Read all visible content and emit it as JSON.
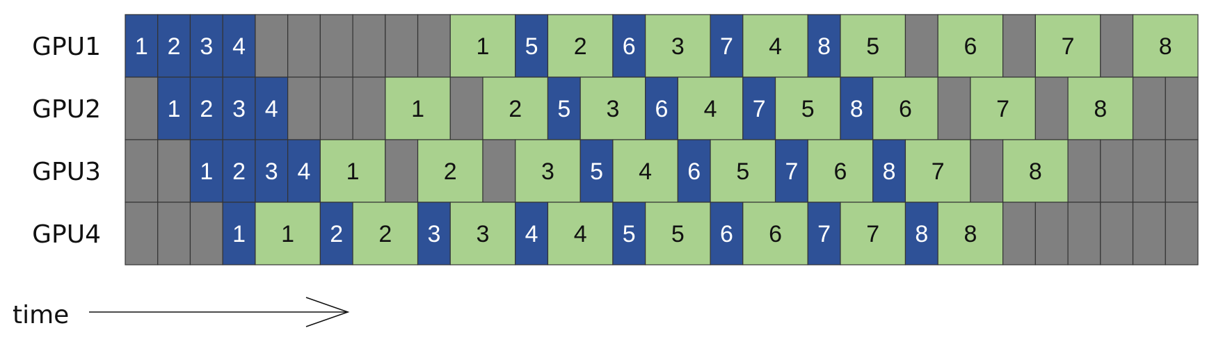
{
  "gpus": [
    {
      "label": "GPU1",
      "cells": [
        {
          "t": "fwd",
          "n": "1"
        },
        {
          "t": "fwd",
          "n": "2"
        },
        {
          "t": "fwd",
          "n": "3"
        },
        {
          "t": "fwd",
          "n": "4"
        },
        {
          "t": "idle"
        },
        {
          "t": "idle"
        },
        {
          "t": "idle"
        },
        {
          "t": "idle"
        },
        {
          "t": "idle"
        },
        {
          "t": "idle"
        },
        {
          "t": "bwd",
          "n": "1"
        },
        {
          "t": "fwd",
          "n": "5"
        },
        {
          "t": "bwd",
          "n": "2"
        },
        {
          "t": "fwd",
          "n": "6"
        },
        {
          "t": "bwd",
          "n": "3"
        },
        {
          "t": "fwd",
          "n": "7"
        },
        {
          "t": "bwd",
          "n": "4"
        },
        {
          "t": "fwd",
          "n": "8"
        },
        {
          "t": "bwd",
          "n": "5"
        },
        {
          "t": "idle"
        },
        {
          "t": "bwd",
          "n": "6"
        },
        {
          "t": "idle"
        },
        {
          "t": "bwd",
          "n": "7"
        },
        {
          "t": "idle"
        },
        {
          "t": "bwd",
          "n": "8"
        }
      ]
    },
    {
      "label": "GPU2",
      "cells": [
        {
          "t": "idle"
        },
        {
          "t": "fwd",
          "n": "1"
        },
        {
          "t": "fwd",
          "n": "2"
        },
        {
          "t": "fwd",
          "n": "3"
        },
        {
          "t": "fwd",
          "n": "4"
        },
        {
          "t": "idle"
        },
        {
          "t": "idle"
        },
        {
          "t": "idle"
        },
        {
          "t": "bwd",
          "n": "1"
        },
        {
          "t": "idle"
        },
        {
          "t": "bwd",
          "n": "2"
        },
        {
          "t": "fwd",
          "n": "5"
        },
        {
          "t": "bwd",
          "n": "3"
        },
        {
          "t": "fwd",
          "n": "6"
        },
        {
          "t": "bwd",
          "n": "4"
        },
        {
          "t": "fwd",
          "n": "7"
        },
        {
          "t": "bwd",
          "n": "5"
        },
        {
          "t": "fwd",
          "n": "8"
        },
        {
          "t": "bwd",
          "n": "6"
        },
        {
          "t": "idle"
        },
        {
          "t": "bwd",
          "n": "7"
        },
        {
          "t": "idle"
        },
        {
          "t": "bwd",
          "n": "8"
        },
        {
          "t": "idle"
        },
        {
          "t": "idle"
        }
      ]
    },
    {
      "label": "GPU3",
      "cells": [
        {
          "t": "idle"
        },
        {
          "t": "idle"
        },
        {
          "t": "fwd",
          "n": "1"
        },
        {
          "t": "fwd",
          "n": "2"
        },
        {
          "t": "fwd",
          "n": "3"
        },
        {
          "t": "fwd",
          "n": "4"
        },
        {
          "t": "bwd",
          "n": "1"
        },
        {
          "t": "idle"
        },
        {
          "t": "bwd",
          "n": "2"
        },
        {
          "t": "idle"
        },
        {
          "t": "bwd",
          "n": "3"
        },
        {
          "t": "fwd",
          "n": "5"
        },
        {
          "t": "bwd",
          "n": "4"
        },
        {
          "t": "fwd",
          "n": "6"
        },
        {
          "t": "bwd",
          "n": "5"
        },
        {
          "t": "fwd",
          "n": "7"
        },
        {
          "t": "bwd",
          "n": "6"
        },
        {
          "t": "fwd",
          "n": "8"
        },
        {
          "t": "bwd",
          "n": "7"
        },
        {
          "t": "idle"
        },
        {
          "t": "bwd",
          "n": "8"
        },
        {
          "t": "idle"
        },
        {
          "t": "idle"
        },
        {
          "t": "idle"
        },
        {
          "t": "idle"
        }
      ]
    },
    {
      "label": "GPU4",
      "cells": [
        {
          "t": "idle"
        },
        {
          "t": "idle"
        },
        {
          "t": "idle"
        },
        {
          "t": "fwd",
          "n": "1"
        },
        {
          "t": "bwd",
          "n": "1"
        },
        {
          "t": "fwd",
          "n": "2"
        },
        {
          "t": "bwd",
          "n": "2"
        },
        {
          "t": "fwd",
          "n": "3"
        },
        {
          "t": "bwd",
          "n": "3"
        },
        {
          "t": "fwd",
          "n": "4"
        },
        {
          "t": "bwd",
          "n": "4"
        },
        {
          "t": "fwd",
          "n": "5"
        },
        {
          "t": "bwd",
          "n": "5"
        },
        {
          "t": "fwd",
          "n": "6"
        },
        {
          "t": "bwd",
          "n": "6"
        },
        {
          "t": "fwd",
          "n": "7"
        },
        {
          "t": "bwd",
          "n": "7"
        },
        {
          "t": "fwd",
          "n": "8"
        },
        {
          "t": "bwd",
          "n": "8"
        },
        {
          "t": "idle"
        },
        {
          "t": "idle"
        },
        {
          "t": "idle"
        },
        {
          "t": "idle"
        },
        {
          "t": "idle"
        },
        {
          "t": "idle"
        }
      ]
    }
  ],
  "time_label": "time",
  "colors": {
    "fwd": "#2e5197",
    "bwd": "#a9d18e",
    "idle": "#808080",
    "fwd_text": "#ffffff",
    "bwd_text": "#111111",
    "border": "#333333"
  }
}
